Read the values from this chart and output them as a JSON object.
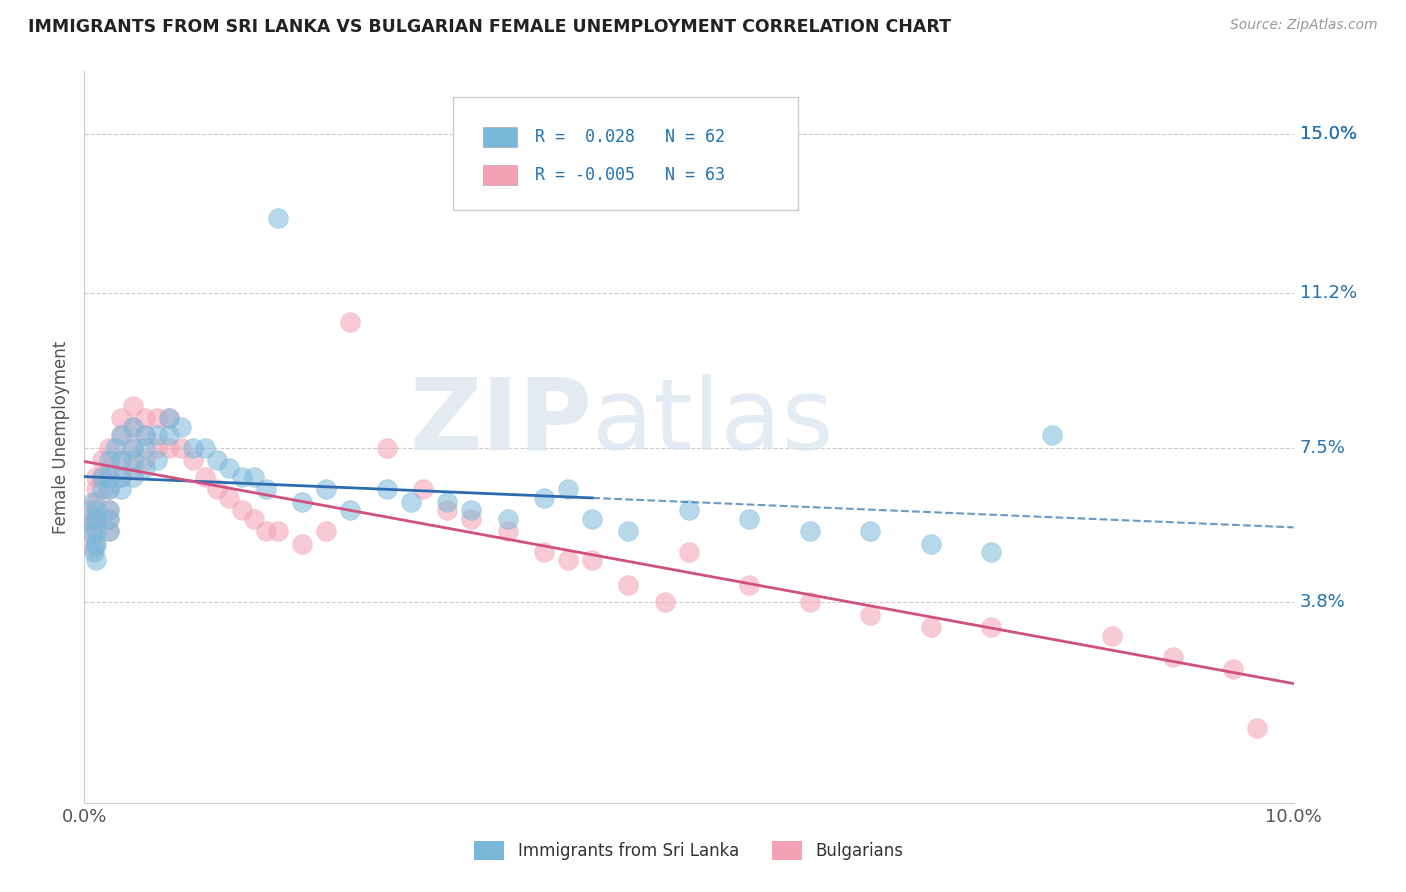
{
  "title": "IMMIGRANTS FROM SRI LANKA VS BULGARIAN FEMALE UNEMPLOYMENT CORRELATION CHART",
  "source": "Source: ZipAtlas.com",
  "ylabel": "Female Unemployment",
  "xlim": [
    0.0,
    0.1
  ],
  "ylim": [
    -0.01,
    0.165
  ],
  "yticks": [
    0.0,
    0.038,
    0.075,
    0.112,
    0.15
  ],
  "ytick_labels": [
    "",
    "3.8%",
    "7.5%",
    "11.2%",
    "15.0%"
  ],
  "xticks": [
    0.0,
    0.1
  ],
  "xtick_labels": [
    "0.0%",
    "10.0%"
  ],
  "legend_entry1": "R =  0.028   N = 62",
  "legend_entry2": "R = -0.005   N = 63",
  "legend_label1": "Immigrants from Sri Lanka",
  "legend_label2": "Bulgarians",
  "color_blue": "#7ab8d9",
  "color_pink": "#f4a0b5",
  "color_blue_dark": "#2b6cb0",
  "color_pink_dark": "#d05080",
  "color_blue_text": "#2171b5",
  "title_color": "#222222",
  "grid_color": "#cccccc",
  "figsize": [
    14.06,
    8.92
  ],
  "dpi": 100,
  "sri_lanka_x": [
    0.0005,
    0.0006,
    0.0007,
    0.0008,
    0.0009,
    0.001,
    0.001,
    0.001,
    0.001,
    0.001,
    0.0015,
    0.0015,
    0.002,
    0.002,
    0.002,
    0.002,
    0.002,
    0.002,
    0.0025,
    0.003,
    0.003,
    0.003,
    0.003,
    0.004,
    0.004,
    0.004,
    0.004,
    0.005,
    0.005,
    0.005,
    0.006,
    0.006,
    0.007,
    0.007,
    0.008,
    0.009,
    0.01,
    0.011,
    0.012,
    0.013,
    0.014,
    0.015,
    0.016,
    0.018,
    0.02,
    0.022,
    0.025,
    0.027,
    0.03,
    0.032,
    0.035,
    0.038,
    0.04,
    0.042,
    0.045,
    0.05,
    0.055,
    0.06,
    0.065,
    0.07,
    0.075,
    0.08
  ],
  "sri_lanka_y": [
    0.058,
    0.055,
    0.062,
    0.05,
    0.052,
    0.06,
    0.058,
    0.055,
    0.052,
    0.048,
    0.065,
    0.068,
    0.072,
    0.068,
    0.065,
    0.06,
    0.058,
    0.055,
    0.075,
    0.078,
    0.072,
    0.068,
    0.065,
    0.08,
    0.075,
    0.072,
    0.068,
    0.078,
    0.075,
    0.07,
    0.078,
    0.072,
    0.082,
    0.078,
    0.08,
    0.075,
    0.075,
    0.072,
    0.07,
    0.068,
    0.068,
    0.065,
    0.13,
    0.062,
    0.065,
    0.06,
    0.065,
    0.062,
    0.062,
    0.06,
    0.058,
    0.063,
    0.065,
    0.058,
    0.055,
    0.06,
    0.058,
    0.055,
    0.055,
    0.052,
    0.05,
    0.078
  ],
  "bulgarian_x": [
    0.0005,
    0.0006,
    0.0007,
    0.0008,
    0.001,
    0.001,
    0.001,
    0.001,
    0.0015,
    0.0015,
    0.002,
    0.002,
    0.002,
    0.002,
    0.002,
    0.002,
    0.003,
    0.003,
    0.003,
    0.003,
    0.004,
    0.004,
    0.004,
    0.004,
    0.005,
    0.005,
    0.005,
    0.006,
    0.006,
    0.007,
    0.007,
    0.008,
    0.009,
    0.01,
    0.011,
    0.012,
    0.013,
    0.014,
    0.015,
    0.016,
    0.018,
    0.02,
    0.022,
    0.025,
    0.028,
    0.03,
    0.032,
    0.035,
    0.038,
    0.04,
    0.042,
    0.045,
    0.048,
    0.05,
    0.055,
    0.06,
    0.065,
    0.07,
    0.075,
    0.085,
    0.09,
    0.095,
    0.097
  ],
  "bulgarian_y": [
    0.06,
    0.057,
    0.054,
    0.051,
    0.065,
    0.068,
    0.062,
    0.058,
    0.072,
    0.068,
    0.075,
    0.07,
    0.065,
    0.06,
    0.058,
    0.055,
    0.082,
    0.078,
    0.072,
    0.068,
    0.085,
    0.08,
    0.075,
    0.07,
    0.082,
    0.078,
    0.072,
    0.082,
    0.075,
    0.082,
    0.075,
    0.075,
    0.072,
    0.068,
    0.065,
    0.063,
    0.06,
    0.058,
    0.055,
    0.055,
    0.052,
    0.055,
    0.105,
    0.075,
    0.065,
    0.06,
    0.058,
    0.055,
    0.05,
    0.048,
    0.048,
    0.042,
    0.038,
    0.05,
    0.042,
    0.038,
    0.035,
    0.032,
    0.032,
    0.03,
    0.025,
    0.022,
    0.008
  ]
}
